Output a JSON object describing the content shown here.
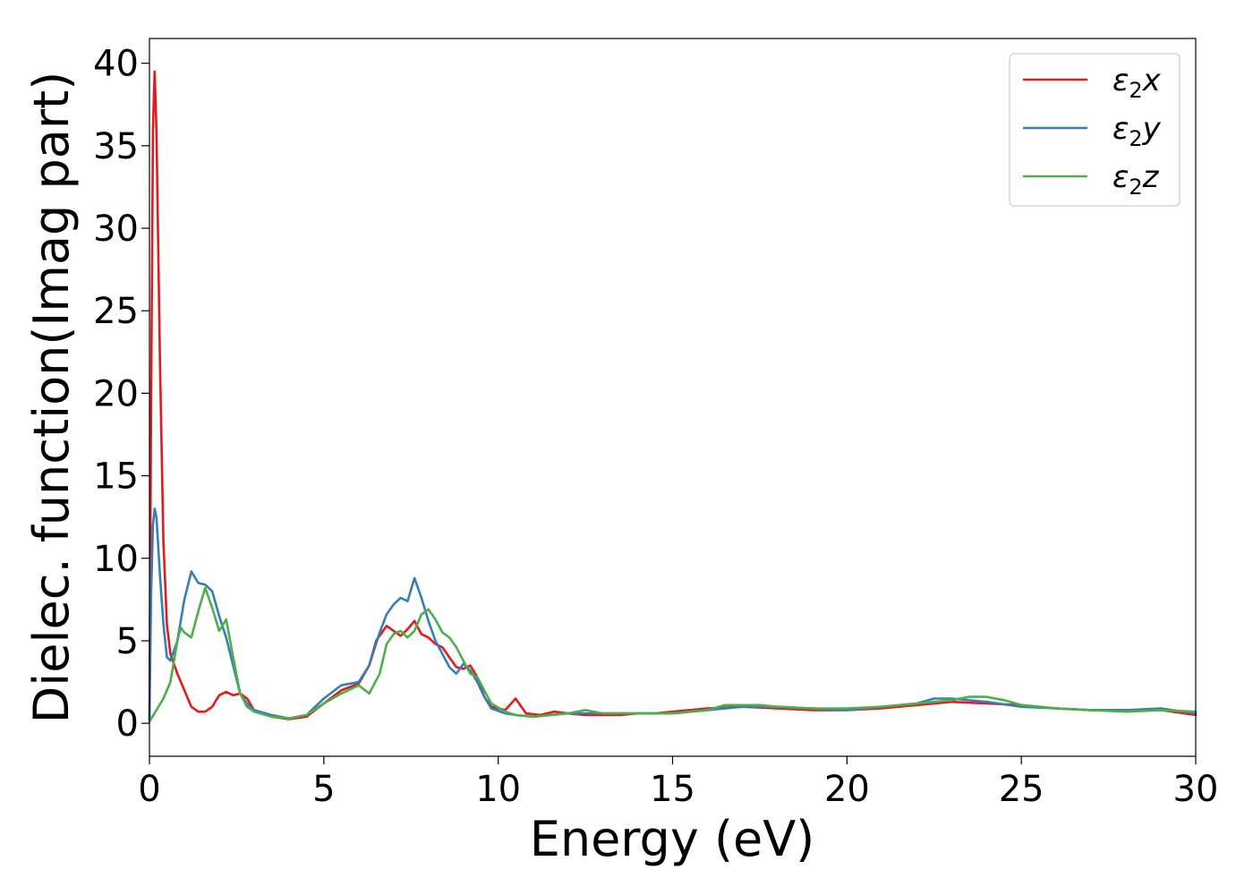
{
  "chart_data": {
    "type": "line",
    "title": "",
    "xlabel": "Energy (eV)",
    "ylabel": "Dielec. function(Imag part)",
    "xlim": [
      0,
      30
    ],
    "ylim": [
      -2,
      41.5
    ],
    "xticks": [
      0,
      5,
      10,
      15,
      20,
      25,
      30
    ],
    "yticks": [
      0,
      5,
      10,
      15,
      20,
      25,
      30,
      35,
      40
    ],
    "grid": false,
    "legend_position": "top-right",
    "series": [
      {
        "name": "ε2x",
        "legend_base": "ε",
        "legend_sub": "2",
        "legend_suffix": "x",
        "color": "#e41a1c",
        "points": [
          [
            0,
            0.2
          ],
          [
            0.05,
            20
          ],
          [
            0.1,
            36
          ],
          [
            0.15,
            39.5
          ],
          [
            0.2,
            36
          ],
          [
            0.3,
            22
          ],
          [
            0.4,
            11
          ],
          [
            0.5,
            6
          ],
          [
            0.6,
            4.2
          ],
          [
            0.8,
            3
          ],
          [
            1.0,
            2
          ],
          [
            1.2,
            1
          ],
          [
            1.4,
            0.7
          ],
          [
            1.6,
            0.7
          ],
          [
            1.8,
            1
          ],
          [
            2.0,
            1.7
          ],
          [
            2.2,
            1.9
          ],
          [
            2.4,
            1.7
          ],
          [
            2.6,
            1.8
          ],
          [
            2.8,
            1.5
          ],
          [
            3.0,
            0.8
          ],
          [
            3.5,
            0.4
          ],
          [
            4.0,
            0.25
          ],
          [
            4.5,
            0.4
          ],
          [
            5.0,
            1.2
          ],
          [
            5.5,
            2.0
          ],
          [
            6.0,
            2.4
          ],
          [
            6.3,
            3.5
          ],
          [
            6.5,
            5.0
          ],
          [
            6.8,
            5.9
          ],
          [
            7.0,
            5.6
          ],
          [
            7.2,
            5.3
          ],
          [
            7.4,
            5.7
          ],
          [
            7.6,
            6.2
          ],
          [
            7.8,
            5.4
          ],
          [
            8.0,
            5.2
          ],
          [
            8.2,
            4.8
          ],
          [
            8.4,
            4.6
          ],
          [
            8.6,
            4.0
          ],
          [
            8.8,
            3.4
          ],
          [
            9.0,
            3.3
          ],
          [
            9.2,
            3.5
          ],
          [
            9.4,
            2.8
          ],
          [
            9.6,
            1.6
          ],
          [
            9.8,
            1.0
          ],
          [
            10.2,
            0.8
          ],
          [
            10.5,
            1.5
          ],
          [
            10.8,
            0.6
          ],
          [
            11.2,
            0.5
          ],
          [
            11.6,
            0.7
          ],
          [
            12.0,
            0.6
          ],
          [
            12.5,
            0.5
          ],
          [
            13.0,
            0.5
          ],
          [
            13.5,
            0.5
          ],
          [
            14.0,
            0.6
          ],
          [
            14.5,
            0.6
          ],
          [
            15.0,
            0.7
          ],
          [
            16.0,
            0.9
          ],
          [
            17.0,
            1.0
          ],
          [
            18.0,
            0.9
          ],
          [
            19.0,
            0.8
          ],
          [
            20.0,
            0.8
          ],
          [
            21.0,
            0.9
          ],
          [
            22.0,
            1.1
          ],
          [
            23.0,
            1.3
          ],
          [
            24.0,
            1.2
          ],
          [
            25.0,
            1.1
          ],
          [
            26.0,
            0.9
          ],
          [
            27.0,
            0.8
          ],
          [
            28.0,
            0.8
          ],
          [
            29.0,
            0.8
          ],
          [
            30.0,
            0.5
          ]
        ]
      },
      {
        "name": "ε2y",
        "legend_base": "ε",
        "legend_sub": "2",
        "legend_suffix": "y",
        "color": "#377eb8",
        "points": [
          [
            0,
            0.2
          ],
          [
            0.05,
            8
          ],
          [
            0.1,
            12
          ],
          [
            0.15,
            13
          ],
          [
            0.2,
            12.5
          ],
          [
            0.3,
            9
          ],
          [
            0.4,
            6
          ],
          [
            0.5,
            4
          ],
          [
            0.6,
            3.8
          ],
          [
            0.8,
            5
          ],
          [
            1.0,
            7.5
          ],
          [
            1.2,
            9.2
          ],
          [
            1.4,
            8.5
          ],
          [
            1.6,
            8.4
          ],
          [
            1.8,
            8.0
          ],
          [
            2.0,
            6.5
          ],
          [
            2.2,
            5.2
          ],
          [
            2.4,
            3.5
          ],
          [
            2.6,
            1.8
          ],
          [
            2.8,
            1.2
          ],
          [
            3.0,
            0.8
          ],
          [
            3.5,
            0.5
          ],
          [
            4.0,
            0.3
          ],
          [
            4.5,
            0.5
          ],
          [
            5.0,
            1.5
          ],
          [
            5.5,
            2.3
          ],
          [
            6.0,
            2.5
          ],
          [
            6.3,
            3.5
          ],
          [
            6.6,
            5.5
          ],
          [
            6.8,
            6.6
          ],
          [
            7.0,
            7.2
          ],
          [
            7.2,
            7.6
          ],
          [
            7.4,
            7.4
          ],
          [
            7.6,
            8.8
          ],
          [
            7.8,
            7.6
          ],
          [
            8.0,
            6.2
          ],
          [
            8.2,
            5.0
          ],
          [
            8.4,
            4.2
          ],
          [
            8.6,
            3.4
          ],
          [
            8.8,
            3.0
          ],
          [
            9.0,
            3.6
          ],
          [
            9.2,
            3.2
          ],
          [
            9.4,
            2.5
          ],
          [
            9.6,
            1.6
          ],
          [
            9.8,
            0.9
          ],
          [
            10.2,
            0.6
          ],
          [
            10.5,
            0.5
          ],
          [
            11.0,
            0.4
          ],
          [
            11.5,
            0.5
          ],
          [
            12.0,
            0.6
          ],
          [
            13.0,
            0.6
          ],
          [
            14.0,
            0.6
          ],
          [
            15.0,
            0.6
          ],
          [
            16.0,
            0.8
          ],
          [
            17.0,
            1.0
          ],
          [
            18.0,
            1.0
          ],
          [
            19.0,
            0.9
          ],
          [
            20.0,
            0.8
          ],
          [
            21.0,
            1.0
          ],
          [
            22.0,
            1.2
          ],
          [
            22.5,
            1.5
          ],
          [
            23.0,
            1.5
          ],
          [
            24.0,
            1.3
          ],
          [
            25.0,
            1.0
          ],
          [
            26.0,
            0.9
          ],
          [
            27.0,
            0.8
          ],
          [
            28.0,
            0.8
          ],
          [
            29.0,
            0.9
          ],
          [
            30.0,
            0.6
          ]
        ]
      },
      {
        "name": "ε2z",
        "legend_base": "ε",
        "legend_sub": "2",
        "legend_suffix": "z",
        "color": "#4daf4a",
        "points": [
          [
            0,
            0.1
          ],
          [
            0.2,
            0.8
          ],
          [
            0.4,
            1.5
          ],
          [
            0.6,
            2.5
          ],
          [
            0.8,
            5.0
          ],
          [
            0.9,
            5.8
          ],
          [
            1.0,
            5.5
          ],
          [
            1.2,
            5.2
          ],
          [
            1.4,
            6.8
          ],
          [
            1.6,
            8.2
          ],
          [
            1.8,
            7.0
          ],
          [
            2.0,
            5.6
          ],
          [
            2.2,
            6.3
          ],
          [
            2.4,
            4.0
          ],
          [
            2.6,
            1.8
          ],
          [
            2.8,
            1.0
          ],
          [
            3.0,
            0.7
          ],
          [
            3.5,
            0.4
          ],
          [
            4.0,
            0.3
          ],
          [
            4.5,
            0.5
          ],
          [
            5.0,
            1.2
          ],
          [
            5.5,
            1.8
          ],
          [
            6.0,
            2.3
          ],
          [
            6.3,
            1.8
          ],
          [
            6.6,
            3.0
          ],
          [
            6.8,
            4.8
          ],
          [
            7.0,
            5.4
          ],
          [
            7.2,
            5.6
          ],
          [
            7.4,
            5.2
          ],
          [
            7.6,
            5.6
          ],
          [
            7.8,
            6.6
          ],
          [
            8.0,
            6.9
          ],
          [
            8.2,
            6.3
          ],
          [
            8.4,
            5.5
          ],
          [
            8.6,
            5.2
          ],
          [
            8.8,
            4.6
          ],
          [
            9.0,
            3.8
          ],
          [
            9.2,
            3.0
          ],
          [
            9.4,
            2.8
          ],
          [
            9.6,
            2.0
          ],
          [
            9.8,
            1.2
          ],
          [
            10.2,
            0.7
          ],
          [
            10.5,
            0.5
          ],
          [
            11.0,
            0.4
          ],
          [
            11.5,
            0.5
          ],
          [
            12.0,
            0.6
          ],
          [
            12.5,
            0.8
          ],
          [
            13.0,
            0.6
          ],
          [
            14.0,
            0.6
          ],
          [
            15.0,
            0.6
          ],
          [
            16.0,
            0.8
          ],
          [
            16.5,
            1.1
          ],
          [
            17.0,
            1.1
          ],
          [
            17.5,
            1.1
          ],
          [
            18.0,
            1.0
          ],
          [
            19.0,
            0.9
          ],
          [
            20.0,
            0.9
          ],
          [
            21.0,
            1.0
          ],
          [
            22.0,
            1.2
          ],
          [
            23.0,
            1.4
          ],
          [
            23.5,
            1.6
          ],
          [
            24.0,
            1.6
          ],
          [
            24.5,
            1.4
          ],
          [
            25.0,
            1.1
          ],
          [
            26.0,
            0.9
          ],
          [
            27.0,
            0.8
          ],
          [
            28.0,
            0.7
          ],
          [
            29.0,
            0.8
          ],
          [
            30.0,
            0.7
          ]
        ]
      }
    ]
  }
}
